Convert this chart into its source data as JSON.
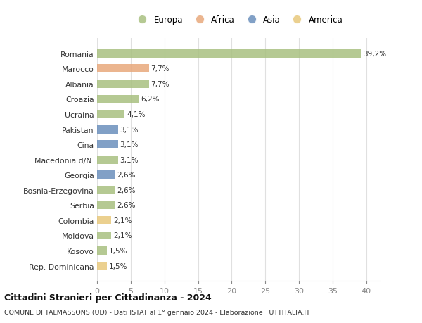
{
  "countries": [
    "Romania",
    "Marocco",
    "Albania",
    "Croazia",
    "Ucraina",
    "Pakistan",
    "Cina",
    "Macedonia d/N.",
    "Georgia",
    "Bosnia-Erzegovina",
    "Serbia",
    "Colombia",
    "Moldova",
    "Kosovo",
    "Rep. Dominicana"
  ],
  "values": [
    39.2,
    7.7,
    7.7,
    6.2,
    4.1,
    3.1,
    3.1,
    3.1,
    2.6,
    2.6,
    2.6,
    2.1,
    2.1,
    1.5,
    1.5
  ],
  "labels": [
    "39,2%",
    "7,7%",
    "7,7%",
    "6,2%",
    "4,1%",
    "3,1%",
    "3,1%",
    "3,1%",
    "2,6%",
    "2,6%",
    "2,6%",
    "2,1%",
    "2,1%",
    "1,5%",
    "1,5%"
  ],
  "colors": [
    "#a8c080",
    "#e8a87c",
    "#a8c080",
    "#a8c080",
    "#a8c080",
    "#6b8fbc",
    "#6b8fbc",
    "#a8c080",
    "#6b8fbc",
    "#a8c080",
    "#a8c080",
    "#e8c87c",
    "#a8c080",
    "#a8c080",
    "#e8c87c"
  ],
  "legend_labels": [
    "Europa",
    "Africa",
    "Asia",
    "America"
  ],
  "legend_colors": [
    "#a8c080",
    "#e8a87c",
    "#6b8fbc",
    "#e8c87c"
  ],
  "title": "Cittadini Stranieri per Cittadinanza - 2024",
  "subtitle": "COMUNE DI TALMASSONS (UD) - Dati ISTAT al 1° gennaio 2024 - Elaborazione TUTTITALIA.IT",
  "xlim": [
    0,
    42
  ],
  "xticks": [
    0,
    5,
    10,
    15,
    20,
    25,
    30,
    35,
    40
  ],
  "bg_color": "#ffffff",
  "grid_color": "#e0e0e0",
  "bar_height": 0.55
}
